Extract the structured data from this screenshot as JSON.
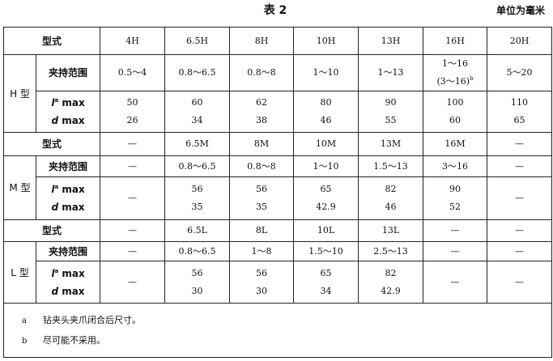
{
  "header": {
    "title": "表 2",
    "unit": "单位为毫米"
  },
  "type_label": "型式",
  "row_labels": {
    "range": "夹持范围",
    "l_var": "l",
    "l_sup": "a",
    "l_suffix": " max",
    "d_var": "d",
    "d_suffix": " max"
  },
  "dash": "—",
  "h": {
    "group": "H 型",
    "models": [
      "4H",
      "6.5H",
      "8H",
      "10H",
      "13H",
      "16H",
      "20H"
    ],
    "range": [
      "0.5～4",
      "0.8～6.5",
      "0.8～8",
      "1～10",
      "1～13",
      "1～16",
      "5～20"
    ],
    "range_alt": {
      "col": 5,
      "text": "(3～16)",
      "sup": "b"
    },
    "l_max": [
      "50",
      "60",
      "62",
      "80",
      "90",
      "100",
      "110"
    ],
    "d_max": [
      "26",
      "34",
      "38",
      "46",
      "55",
      "60",
      "65"
    ]
  },
  "m": {
    "group": "M 型",
    "models": [
      "—",
      "6.5M",
      "8M",
      "10M",
      "13M",
      "16M",
      "—"
    ],
    "range": [
      "—",
      "0.8～6.5",
      "0.8～8",
      "1～10",
      "1.5～13",
      "3～16",
      "—"
    ],
    "l_max": [
      "—",
      "56",
      "56",
      "65",
      "82",
      "90",
      "—"
    ],
    "d_max": [
      "—",
      "35",
      "35",
      "42.9",
      "46",
      "52",
      "—"
    ]
  },
  "l": {
    "group": "L 型",
    "models": [
      "—",
      "6.5L",
      "8L",
      "10L",
      "13L",
      "—",
      "—"
    ],
    "range": [
      "—",
      "0.8～6.5",
      "1～8",
      "1.5～10",
      "2.5～13",
      "—",
      "—"
    ],
    "l_max": [
      "—",
      "56",
      "56",
      "65",
      "82",
      "—",
      "—"
    ],
    "d_max": [
      "—",
      "30",
      "30",
      "34",
      "42.9",
      "—",
      "—"
    ]
  },
  "footnotes": [
    {
      "mark": "a",
      "text": "钻夹头夹爪闭合后尺寸。"
    },
    {
      "mark": "b",
      "text": "尽可能不采用。"
    }
  ]
}
